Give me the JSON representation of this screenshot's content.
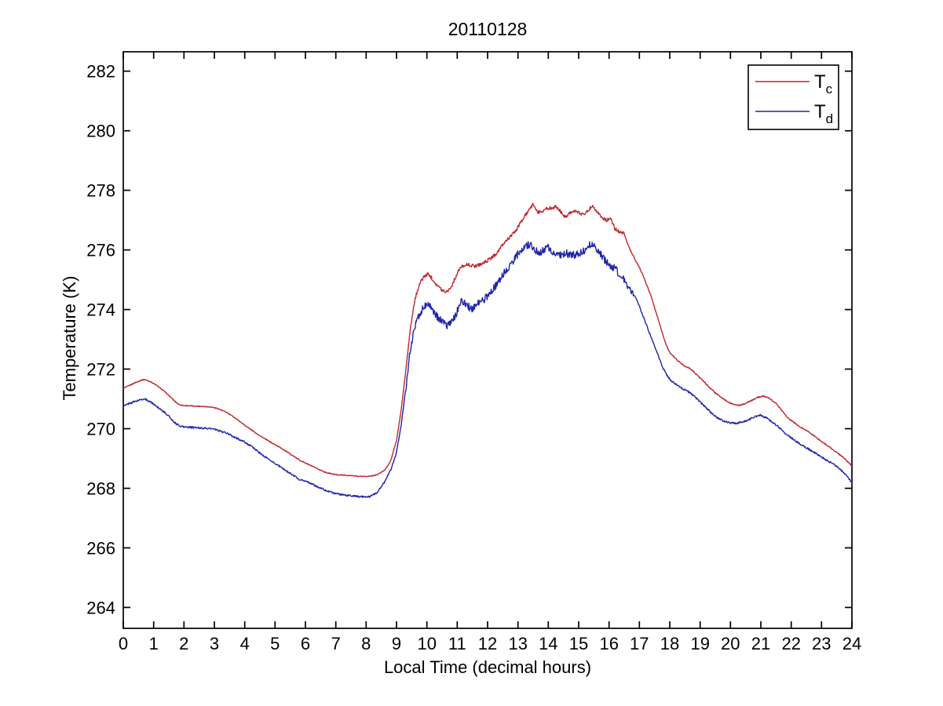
{
  "figure": {
    "title": "20110128",
    "xlabel": "Local Time (decimal hours)",
    "ylabel": "Temperature (K)"
  },
  "legend": {
    "entries": [
      {
        "main": "T",
        "sub": "c",
        "series": "T_c"
      },
      {
        "main": "T",
        "sub": "d",
        "series": "T_d"
      }
    ]
  },
  "chart_data": {
    "type": "line",
    "title": "20110128",
    "xlabel": "Local Time (decimal hours)",
    "ylabel": "Temperature (K)",
    "xlim": [
      0,
      24
    ],
    "ylim": [
      263.3,
      282.65
    ],
    "x_ticks": [
      0,
      1,
      2,
      3,
      4,
      5,
      6,
      7,
      8,
      9,
      10,
      11,
      12,
      13,
      14,
      15,
      16,
      17,
      18,
      19,
      20,
      21,
      22,
      23,
      24
    ],
    "y_ticks": [
      264,
      266,
      268,
      270,
      272,
      274,
      276,
      278,
      280,
      282
    ],
    "grid": false,
    "box": true,
    "legend_position": "top-right",
    "series": [
      {
        "name": "T_c",
        "color": "#c0262c",
        "noise_segments": [
          [
            0,
            9.4,
            0.015
          ],
          [
            9.4,
            16.5,
            0.055
          ],
          [
            16.5,
            24,
            0.02
          ]
        ],
        "points": [
          [
            0,
            271.35
          ],
          [
            0.2,
            271.45
          ],
          [
            0.4,
            271.55
          ],
          [
            0.6,
            271.63
          ],
          [
            0.7,
            271.65
          ],
          [
            0.9,
            271.58
          ],
          [
            1.1,
            271.45
          ],
          [
            1.3,
            271.3
          ],
          [
            1.5,
            271.12
          ],
          [
            1.7,
            270.92
          ],
          [
            1.85,
            270.8
          ],
          [
            2.0,
            270.78
          ],
          [
            2.3,
            270.76
          ],
          [
            2.6,
            270.75
          ],
          [
            2.9,
            270.73
          ],
          [
            3.1,
            270.68
          ],
          [
            3.4,
            270.55
          ],
          [
            3.7,
            270.35
          ],
          [
            4.0,
            270.12
          ],
          [
            4.3,
            269.9
          ],
          [
            4.6,
            269.7
          ],
          [
            4.9,
            269.52
          ],
          [
            5.2,
            269.35
          ],
          [
            5.5,
            269.15
          ],
          [
            5.8,
            268.95
          ],
          [
            6.1,
            268.8
          ],
          [
            6.4,
            268.65
          ],
          [
            6.7,
            268.52
          ],
          [
            7.0,
            268.46
          ],
          [
            7.4,
            268.43
          ],
          [
            7.8,
            268.4
          ],
          [
            8.1,
            268.4
          ],
          [
            8.35,
            268.45
          ],
          [
            8.6,
            268.6
          ],
          [
            8.8,
            268.9
          ],
          [
            9.0,
            269.6
          ],
          [
            9.15,
            270.6
          ],
          [
            9.3,
            271.9
          ],
          [
            9.45,
            273.3
          ],
          [
            9.6,
            274.3
          ],
          [
            9.75,
            274.85
          ],
          [
            9.9,
            275.1
          ],
          [
            10.05,
            275.2
          ],
          [
            10.2,
            275.0
          ],
          [
            10.35,
            274.8
          ],
          [
            10.5,
            274.65
          ],
          [
            10.65,
            274.6
          ],
          [
            10.8,
            274.75
          ],
          [
            10.95,
            275.1
          ],
          [
            11.1,
            275.4
          ],
          [
            11.25,
            275.5
          ],
          [
            11.4,
            275.5
          ],
          [
            11.55,
            275.45
          ],
          [
            11.7,
            275.5
          ],
          [
            11.85,
            275.55
          ],
          [
            12.0,
            275.65
          ],
          [
            12.15,
            275.75
          ],
          [
            12.3,
            275.9
          ],
          [
            12.45,
            276.1
          ],
          [
            12.6,
            276.3
          ],
          [
            12.75,
            276.45
          ],
          [
            12.9,
            276.6
          ],
          [
            13.05,
            276.85
          ],
          [
            13.2,
            277.1
          ],
          [
            13.35,
            277.3
          ],
          [
            13.5,
            277.55
          ],
          [
            13.65,
            277.25
          ],
          [
            13.8,
            277.3
          ],
          [
            13.95,
            277.4
          ],
          [
            14.1,
            277.4
          ],
          [
            14.25,
            277.45
          ],
          [
            14.4,
            277.3
          ],
          [
            14.55,
            277.1
          ],
          [
            14.7,
            277.25
          ],
          [
            14.85,
            277.3
          ],
          [
            15.0,
            277.25
          ],
          [
            15.15,
            277.2
          ],
          [
            15.3,
            277.3
          ],
          [
            15.45,
            277.5
          ],
          [
            15.6,
            277.3
          ],
          [
            15.75,
            277.1
          ],
          [
            15.9,
            277.0
          ],
          [
            16.05,
            277.05
          ],
          [
            16.2,
            276.7
          ],
          [
            16.35,
            276.6
          ],
          [
            16.5,
            276.55
          ],
          [
            16.65,
            276.1
          ],
          [
            16.8,
            275.8
          ],
          [
            16.95,
            275.5
          ],
          [
            17.1,
            275.2
          ],
          [
            17.25,
            274.8
          ],
          [
            17.4,
            274.4
          ],
          [
            17.55,
            273.9
          ],
          [
            17.7,
            273.4
          ],
          [
            17.85,
            272.9
          ],
          [
            18.0,
            272.55
          ],
          [
            18.15,
            272.4
          ],
          [
            18.3,
            272.25
          ],
          [
            18.5,
            272.1
          ],
          [
            18.7,
            272.0
          ],
          [
            18.9,
            271.8
          ],
          [
            19.1,
            271.6
          ],
          [
            19.3,
            271.4
          ],
          [
            19.5,
            271.2
          ],
          [
            19.7,
            271.05
          ],
          [
            19.9,
            270.9
          ],
          [
            20.1,
            270.82
          ],
          [
            20.3,
            270.78
          ],
          [
            20.5,
            270.85
          ],
          [
            20.7,
            270.95
          ],
          [
            20.9,
            271.05
          ],
          [
            21.1,
            271.1
          ],
          [
            21.3,
            271.0
          ],
          [
            21.5,
            270.85
          ],
          [
            21.7,
            270.6
          ],
          [
            21.9,
            270.35
          ],
          [
            22.1,
            270.2
          ],
          [
            22.3,
            270.05
          ],
          [
            22.5,
            269.95
          ],
          [
            22.7,
            269.8
          ],
          [
            22.9,
            269.65
          ],
          [
            23.1,
            269.5
          ],
          [
            23.3,
            269.35
          ],
          [
            23.5,
            269.2
          ],
          [
            23.7,
            269.05
          ],
          [
            23.85,
            268.9
          ],
          [
            24,
            268.75
          ]
        ]
      },
      {
        "name": "T_d",
        "color": "#2024a8",
        "noise_segments": [
          [
            0,
            9.3,
            0.03
          ],
          [
            9.3,
            16.8,
            0.13
          ],
          [
            16.8,
            24,
            0.03
          ]
        ],
        "points": [
          [
            0,
            270.75
          ],
          [
            0.2,
            270.85
          ],
          [
            0.4,
            270.92
          ],
          [
            0.6,
            270.98
          ],
          [
            0.7,
            271.0
          ],
          [
            0.9,
            270.9
          ],
          [
            1.1,
            270.75
          ],
          [
            1.3,
            270.6
          ],
          [
            1.5,
            270.42
          ],
          [
            1.7,
            270.2
          ],
          [
            1.85,
            270.1
          ],
          [
            2.0,
            270.06
          ],
          [
            2.3,
            270.04
          ],
          [
            2.6,
            270.02
          ],
          [
            2.9,
            270.0
          ],
          [
            3.1,
            269.95
          ],
          [
            3.4,
            269.85
          ],
          [
            3.7,
            269.7
          ],
          [
            4.0,
            269.55
          ],
          [
            4.3,
            269.35
          ],
          [
            4.6,
            269.1
          ],
          [
            4.9,
            268.9
          ],
          [
            5.2,
            268.7
          ],
          [
            5.5,
            268.5
          ],
          [
            5.8,
            268.3
          ],
          [
            6.1,
            268.2
          ],
          [
            6.4,
            268.05
          ],
          [
            6.7,
            267.92
          ],
          [
            7.0,
            267.82
          ],
          [
            7.4,
            267.76
          ],
          [
            7.8,
            267.72
          ],
          [
            8.1,
            267.72
          ],
          [
            8.35,
            267.85
          ],
          [
            8.6,
            268.2
          ],
          [
            8.8,
            268.6
          ],
          [
            9.0,
            269.2
          ],
          [
            9.15,
            270.1
          ],
          [
            9.3,
            271.3
          ],
          [
            9.45,
            272.6
          ],
          [
            9.6,
            273.4
          ],
          [
            9.75,
            273.85
          ],
          [
            9.9,
            274.05
          ],
          [
            10.0,
            274.25
          ],
          [
            10.1,
            274.1
          ],
          [
            10.25,
            273.85
          ],
          [
            10.4,
            273.7
          ],
          [
            10.55,
            273.55
          ],
          [
            10.7,
            273.45
          ],
          [
            10.85,
            273.6
          ],
          [
            11.0,
            273.95
          ],
          [
            11.15,
            274.3
          ],
          [
            11.3,
            274.2
          ],
          [
            11.45,
            274.0
          ],
          [
            11.6,
            274.15
          ],
          [
            11.75,
            274.25
          ],
          [
            11.9,
            274.35
          ],
          [
            12.05,
            274.5
          ],
          [
            12.2,
            274.7
          ],
          [
            12.35,
            274.95
          ],
          [
            12.5,
            275.15
          ],
          [
            12.65,
            275.4
          ],
          [
            12.8,
            275.55
          ],
          [
            12.95,
            275.8
          ],
          [
            13.1,
            276.0
          ],
          [
            13.25,
            276.1
          ],
          [
            13.4,
            276.2
          ],
          [
            13.55,
            276.0
          ],
          [
            13.7,
            275.9
          ],
          [
            13.85,
            276.0
          ],
          [
            14.0,
            276.1
          ],
          [
            14.15,
            275.95
          ],
          [
            14.3,
            275.85
          ],
          [
            14.45,
            275.8
          ],
          [
            14.6,
            275.9
          ],
          [
            14.75,
            275.8
          ],
          [
            14.9,
            275.85
          ],
          [
            15.05,
            275.9
          ],
          [
            15.2,
            276.0
          ],
          [
            15.35,
            276.15
          ],
          [
            15.5,
            276.25
          ],
          [
            15.65,
            275.95
          ],
          [
            15.8,
            275.75
          ],
          [
            15.95,
            275.55
          ],
          [
            16.1,
            275.45
          ],
          [
            16.25,
            275.3
          ],
          [
            16.4,
            275.15
          ],
          [
            16.55,
            274.9
          ],
          [
            16.7,
            274.7
          ],
          [
            16.85,
            274.45
          ],
          [
            17.0,
            274.1
          ],
          [
            17.15,
            273.7
          ],
          [
            17.3,
            273.3
          ],
          [
            17.45,
            272.9
          ],
          [
            17.6,
            272.5
          ],
          [
            17.75,
            272.1
          ],
          [
            17.9,
            271.8
          ],
          [
            18.05,
            271.6
          ],
          [
            18.2,
            271.5
          ],
          [
            18.4,
            271.35
          ],
          [
            18.6,
            271.25
          ],
          [
            18.8,
            271.1
          ],
          [
            19.0,
            270.9
          ],
          [
            19.2,
            270.7
          ],
          [
            19.4,
            270.5
          ],
          [
            19.6,
            270.35
          ],
          [
            19.8,
            270.25
          ],
          [
            20.0,
            270.2
          ],
          [
            20.2,
            270.18
          ],
          [
            20.4,
            270.22
          ],
          [
            20.6,
            270.3
          ],
          [
            20.8,
            270.4
          ],
          [
            21.0,
            270.45
          ],
          [
            21.2,
            270.35
          ],
          [
            21.4,
            270.2
          ],
          [
            21.6,
            270.05
          ],
          [
            21.8,
            269.85
          ],
          [
            22.0,
            269.7
          ],
          [
            22.2,
            269.55
          ],
          [
            22.4,
            269.42
          ],
          [
            22.6,
            269.3
          ],
          [
            22.8,
            269.18
          ],
          [
            23.0,
            269.05
          ],
          [
            23.2,
            268.92
          ],
          [
            23.4,
            268.8
          ],
          [
            23.6,
            268.65
          ],
          [
            23.8,
            268.45
          ],
          [
            24,
            268.2
          ]
        ]
      }
    ]
  }
}
